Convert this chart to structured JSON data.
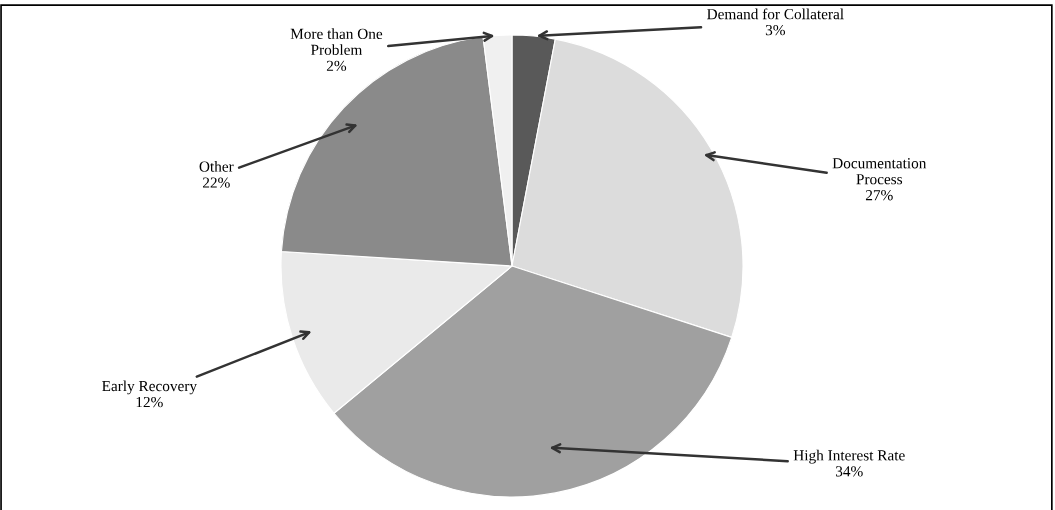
{
  "chart_data": {
    "type": "pie",
    "categories": [
      "Demand for Collateral",
      "Documentation\nProcess",
      "High Interest Rate",
      "Early Recovery",
      "Other",
      "More than One\nProblem"
    ],
    "values": [
      3,
      27,
      34,
      12,
      22,
      2
    ],
    "value_labels": [
      "3%",
      "27%",
      "34%",
      "12%",
      "22%",
      "2%"
    ],
    "colors": [
      "#595959",
      "#dcdcdc",
      "#a0a0a0",
      "#eaeaea",
      "#8a8a8a",
      "#f0f0f0"
    ],
    "legend": false
  }
}
